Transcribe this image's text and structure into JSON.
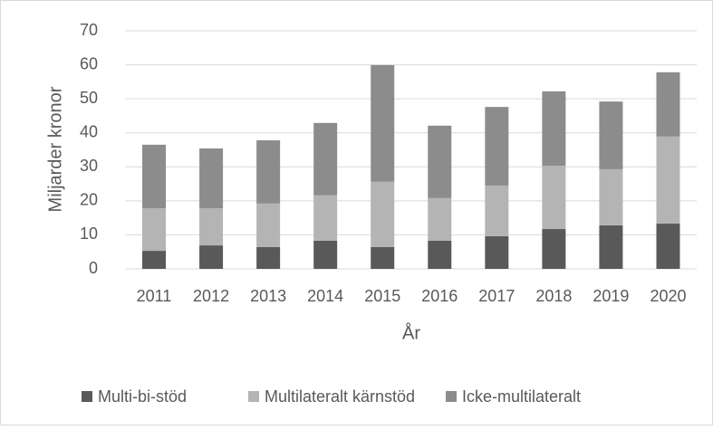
{
  "chart_data": {
    "type": "stacked_bar",
    "x_label": "År",
    "y_label": "Miljarder kronor",
    "categories": [
      "2011",
      "2012",
      "2013",
      "2014",
      "2015",
      "2016",
      "2017",
      "2018",
      "2019",
      "2020"
    ],
    "series": [
      {
        "name": "Multi-bi-stöd",
        "color": "#595959",
        "values": [
          5.3,
          6.9,
          6.4,
          8.3,
          6.4,
          8.3,
          9.6,
          11.7,
          12.8,
          13.3
        ]
      },
      {
        "name": "Multilateralt kärnstöd",
        "color": "#b4b4b4",
        "values": [
          12.5,
          10.9,
          12.8,
          13.3,
          19.2,
          12.5,
          14.9,
          18.6,
          16.5,
          25.6
        ]
      },
      {
        "name": "Icke-multilateralt",
        "color": "#8c8c8c",
        "values": [
          18.7,
          17.6,
          18.6,
          21.3,
          34.3,
          21.3,
          23.1,
          21.9,
          19.9,
          18.9
        ]
      }
    ],
    "ylim": [
      0,
      70
    ],
    "yticks": [
      0,
      10,
      20,
      30,
      40,
      50,
      60,
      70
    ],
    "grid": true,
    "legend": "bottom"
  }
}
